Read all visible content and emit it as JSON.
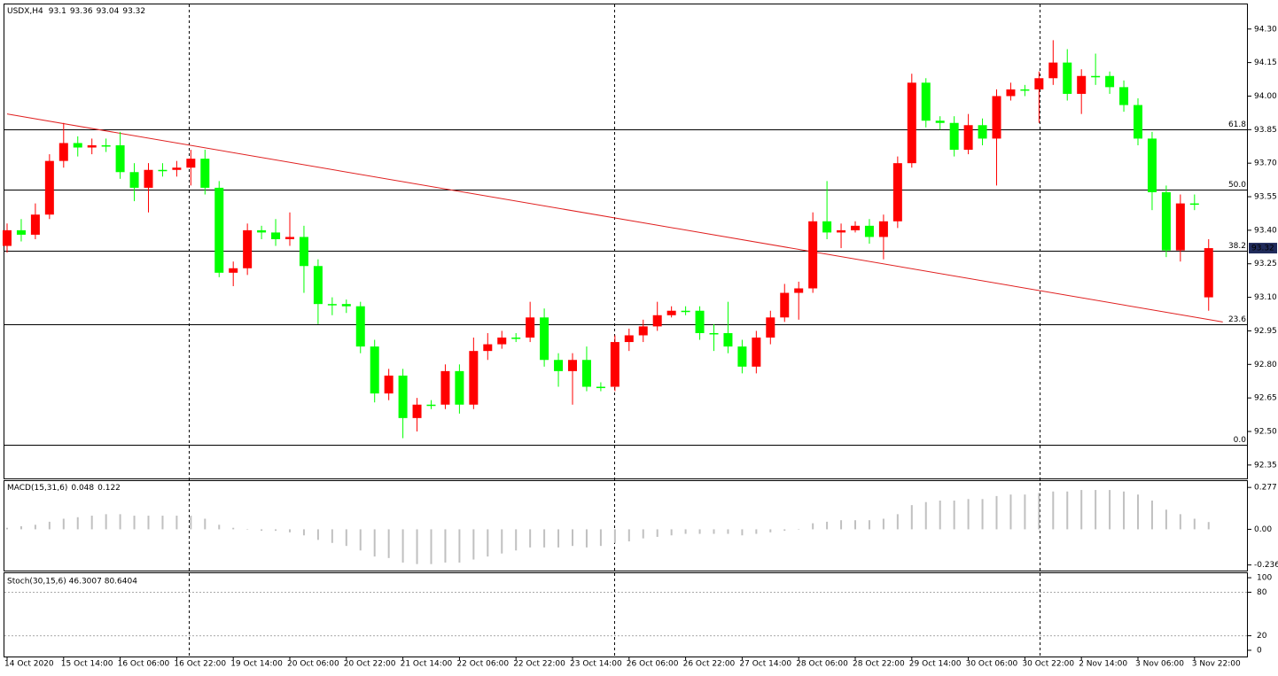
{
  "chart_data": {
    "type": "candlestick",
    "symbol": "USDX,H4",
    "categories": [
      "14 Oct 2020",
      null,
      null,
      null,
      "15 Oct 14:00",
      null,
      null,
      null,
      "16 Oct 06:00",
      null,
      null,
      null,
      "16 Oct 22:00",
      null,
      null,
      null,
      "19 Oct 14:00",
      null,
      null,
      null,
      "20 Oct 06:00",
      null,
      null,
      null,
      "20 Oct 22:00",
      null,
      null,
      null,
      "21 Oct 14:00",
      null,
      null,
      null,
      "22 Oct 06:00",
      null,
      null,
      null,
      "22 Oct 22:00",
      null,
      null,
      null,
      "23 Oct 14:00",
      null,
      null,
      null,
      "26 Oct 06:00",
      null,
      null,
      null,
      "26 Oct 22:00",
      null,
      null,
      null,
      "27 Oct 14:00",
      null,
      null,
      null,
      "28 Oct 06:00",
      null,
      null,
      null,
      "28 Oct 22:00",
      null,
      null,
      null,
      "29 Oct 14:00",
      null,
      null,
      null,
      "30 Oct 06:00",
      null,
      null,
      null,
      "30 Oct 22:00",
      null,
      null,
      null,
      "2 Nov 14:00",
      null,
      null,
      null,
      "3 Nov 06:00",
      null,
      null,
      null,
      "3 Nov 22:00",
      null
    ],
    "candles": {
      "open": [
        93.33,
        93.4,
        93.38,
        93.47,
        93.71,
        93.79,
        93.77,
        93.78,
        93.78,
        93.66,
        93.59,
        93.67,
        93.67,
        93.68,
        93.72,
        93.59,
        93.21,
        93.23,
        93.4,
        93.39,
        93.36,
        93.37,
        93.24,
        93.07,
        93.07,
        93.06,
        92.88,
        92.67,
        92.75,
        92.56,
        92.62,
        92.62,
        92.77,
        92.62,
        92.86,
        92.89,
        92.92,
        92.92,
        93.01,
        92.82,
        92.77,
        92.82,
        92.7,
        92.7,
        92.9,
        92.93,
        92.97,
        93.02,
        93.04,
        93.04,
        92.94,
        92.94,
        92.88,
        92.79,
        92.92,
        93.01,
        93.12,
        93.14,
        93.44,
        93.39,
        93.4,
        93.42,
        93.37,
        93.44,
        93.7,
        94.06,
        93.89,
        93.88,
        93.76,
        93.87,
        93.81,
        94.0,
        94.03,
        94.03,
        94.08,
        94.15,
        94.01,
        94.09,
        94.09,
        94.04,
        93.96,
        93.81,
        93.57,
        93.31,
        93.52,
        93.1
      ],
      "high": [
        93.43,
        93.45,
        93.52,
        93.74,
        93.88,
        93.82,
        93.81,
        93.81,
        93.84,
        93.7,
        93.7,
        93.7,
        93.71,
        93.76,
        93.76,
        93.62,
        93.26,
        93.43,
        93.42,
        93.45,
        93.48,
        93.42,
        93.27,
        93.1,
        93.09,
        93.08,
        92.91,
        92.78,
        92.78,
        92.65,
        92.64,
        92.8,
        92.8,
        92.92,
        92.94,
        92.95,
        92.94,
        93.08,
        93.05,
        92.85,
        92.85,
        92.88,
        92.72,
        92.93,
        92.96,
        93.0,
        93.08,
        93.06,
        93.06,
        93.06,
        92.98,
        93.08,
        92.91,
        92.95,
        93.04,
        93.16,
        93.17,
        93.48,
        93.62,
        93.43,
        93.44,
        93.45,
        93.47,
        93.73,
        94.1,
        94.08,
        93.91,
        93.91,
        93.92,
        93.9,
        94.03,
        94.06,
        94.05,
        94.11,
        94.25,
        94.21,
        94.12,
        94.19,
        94.11,
        94.07,
        93.99,
        93.84,
        93.6,
        93.56,
        93.56,
        93.36
      ],
      "low": [
        93.3,
        93.35,
        93.36,
        93.45,
        93.68,
        93.73,
        93.74,
        93.75,
        93.63,
        93.53,
        93.48,
        93.64,
        93.64,
        93.6,
        93.56,
        93.19,
        93.15,
        93.2,
        93.36,
        93.33,
        93.33,
        93.12,
        92.98,
        93.02,
        93.03,
        92.85,
        92.63,
        92.64,
        92.47,
        92.5,
        92.6,
        92.6,
        92.58,
        92.6,
        92.82,
        92.87,
        92.9,
        92.9,
        92.79,
        92.7,
        92.62,
        92.68,
        92.68,
        92.68,
        92.86,
        92.9,
        92.95,
        93.01,
        93.02,
        92.91,
        92.86,
        92.85,
        92.76,
        92.76,
        92.89,
        92.99,
        93.0,
        93.12,
        93.36,
        93.32,
        93.39,
        93.34,
        93.27,
        93.41,
        93.68,
        93.86,
        93.85,
        93.73,
        93.74,
        93.78,
        93.6,
        93.98,
        94.0,
        93.88,
        94.05,
        93.98,
        93.92,
        94.05,
        94.01,
        93.93,
        93.78,
        93.49,
        93.28,
        93.26,
        93.49,
        93.04
      ],
      "close": [
        93.4,
        93.38,
        93.47,
        93.71,
        93.79,
        93.77,
        93.78,
        93.78,
        93.66,
        93.59,
        93.67,
        93.67,
        93.68,
        93.72,
        93.59,
        93.21,
        93.23,
        93.4,
        93.39,
        93.36,
        93.37,
        93.24,
        93.07,
        93.07,
        93.06,
        92.88,
        92.67,
        92.75,
        92.56,
        92.62,
        92.62,
        92.77,
        92.62,
        92.86,
        92.89,
        92.92,
        92.92,
        93.01,
        92.82,
        92.77,
        92.82,
        92.7,
        92.7,
        92.9,
        92.93,
        92.97,
        93.02,
        93.04,
        93.04,
        92.94,
        92.94,
        92.88,
        92.79,
        92.92,
        93.01,
        93.12,
        93.14,
        93.44,
        93.39,
        93.4,
        93.42,
        93.37,
        93.44,
        93.7,
        94.06,
        93.89,
        93.88,
        93.76,
        93.87,
        93.81,
        94.0,
        94.03,
        94.03,
        94.08,
        94.15,
        94.01,
        94.09,
        94.09,
        94.04,
        93.96,
        93.81,
        93.57,
        93.31,
        93.52,
        93.52,
        93.32
      ]
    },
    "up_color": "#ff0000",
    "down_color": "#00ff00",
    "ylim": [
      92.29,
      94.41
    ],
    "yticks": [
      {
        "value": 94.3,
        "label": "94.30"
      },
      94.15,
      {
        "value": 94.0,
        "label": "94.00"
      },
      93.85,
      {
        "value": 93.7,
        "label": "93.70"
      },
      93.55,
      {
        "value": 93.4,
        "label": "93.40"
      },
      93.25,
      {
        "value": 93.1,
        "label": "93.10"
      },
      92.95,
      {
        "value": 92.8,
        "label": "92.80"
      },
      92.65,
      {
        "value": 92.5,
        "label": "92.50"
      },
      92.35
    ],
    "fib_levels": [
      {
        "label": "61.8",
        "price": 93.85
      },
      {
        "label": "50.0",
        "price": 93.58
      },
      {
        "label": "38.2",
        "price": 93.31
      },
      {
        "label": "23.6",
        "price": 92.98
      },
      {
        "label": "0.0",
        "price": 92.44
      }
    ],
    "trendline": {
      "start": 93.92,
      "end": 92.99,
      "color": "#e02020"
    },
    "macd": {
      "title": "MACD(15,31,6)",
      "signal_current": 0.122,
      "values": [
        0.01,
        0.02,
        0.03,
        0.05,
        0.07,
        0.08,
        0.09,
        0.1,
        0.1,
        0.09,
        0.09,
        0.09,
        0.09,
        0.09,
        0.07,
        0.03,
        0.01,
        0.0,
        -0.01,
        -0.01,
        -0.02,
        -0.04,
        -0.07,
        -0.09,
        -0.11,
        -0.14,
        -0.18,
        -0.19,
        -0.22,
        -0.23,
        -0.23,
        -0.22,
        -0.22,
        -0.2,
        -0.18,
        -0.16,
        -0.14,
        -0.12,
        -0.12,
        -0.12,
        -0.11,
        -0.12,
        -0.11,
        -0.09,
        -0.08,
        -0.06,
        -0.05,
        -0.04,
        -0.03,
        -0.03,
        -0.03,
        -0.03,
        -0.04,
        -0.03,
        -0.02,
        -0.01,
        0.0,
        0.04,
        0.05,
        0.06,
        0.06,
        0.06,
        0.07,
        0.1,
        0.16,
        0.18,
        0.19,
        0.19,
        0.2,
        0.2,
        0.22,
        0.23,
        0.23,
        0.24,
        0.25,
        0.25,
        0.26,
        0.26,
        0.26,
        0.25,
        0.23,
        0.19,
        0.13,
        0.1,
        0.07,
        0.048
      ],
      "color": "#c0c0c0",
      "ylim": [
        -0.273,
        0.319
      ],
      "yticks": [
        0.277,
        {
          "value": 0,
          "label": "0.00"
        },
        -0.236
      ]
    },
    "stoch": {
      "title": "Stoch(30,15,6) 46.3007 80.6404",
      "ylim": [
        -8.6,
        106.2
      ],
      "yticks": [
        100,
        80,
        20,
        0
      ],
      "levels": [
        80,
        20
      ]
    }
  }
}
